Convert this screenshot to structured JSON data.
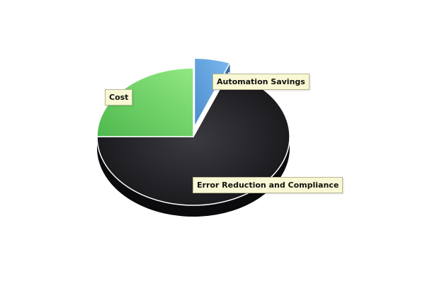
{
  "chart_data": {
    "type": "pie",
    "title": "",
    "slices": [
      {
        "label": "Automation Savings",
        "value": 6,
        "color": "#5fa2dd"
      },
      {
        "label": "Error Reduction and Compliance",
        "value": 69,
        "color": "#2b2b30"
      },
      {
        "label": "Cost",
        "value": 25,
        "color": "#6ed86e"
      }
    ],
    "exploded": "Automation Savings",
    "style": "3d",
    "legend": "none"
  }
}
